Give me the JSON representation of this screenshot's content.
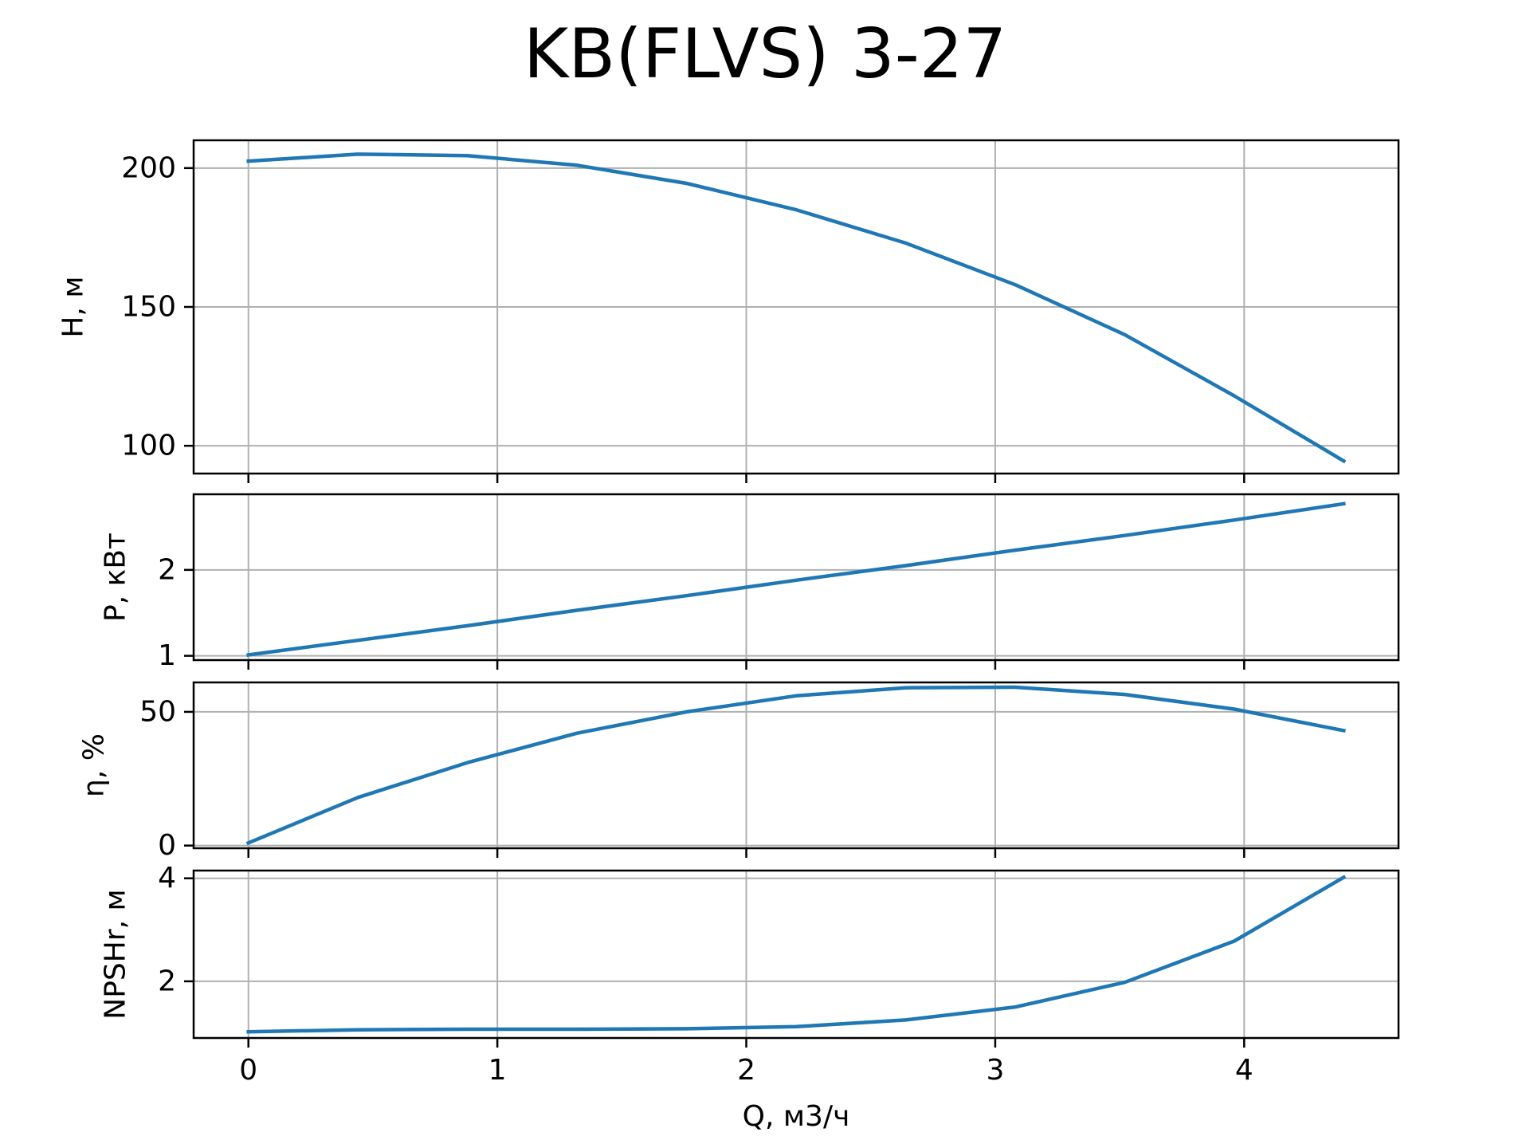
{
  "chart_data": {
    "type": "line",
    "title": "KB(FLVS) 3-27",
    "xlabel": "Q, м3/ч",
    "x_ticks": [
      "0",
      "1",
      "2",
      "3",
      "4"
    ],
    "xlim": [
      -0.22,
      4.62
    ],
    "grid": true,
    "series_color": "#1f77b4",
    "panels": [
      {
        "ylabel": "H, м",
        "ylim": [
          90,
          210
        ],
        "y_ticks": [
          100,
          150,
          200
        ],
        "x": [
          0,
          0.44,
          0.88,
          1.32,
          1.76,
          2.2,
          2.64,
          3.08,
          3.52,
          3.96,
          4.4
        ],
        "y": [
          202.5,
          205,
          204.5,
          201,
          194.5,
          185,
          173,
          158,
          140,
          118,
          94.5
        ]
      },
      {
        "ylabel": "P, кВт",
        "ylim": [
          0.95,
          2.88
        ],
        "y_ticks": [
          1,
          2
        ],
        "x": [
          0,
          0.44,
          0.88,
          1.32,
          1.76,
          2.2,
          2.64,
          3.08,
          3.52,
          3.96,
          4.4
        ],
        "y": [
          1.01,
          1.18,
          1.35,
          1.53,
          1.7,
          1.88,
          2.05,
          2.23,
          2.4,
          2.58,
          2.77
        ]
      },
      {
        "ylabel": "η, %",
        "ylim": [
          -1,
          61
        ],
        "y_ticks": [
          0,
          50
        ],
        "x": [
          0,
          0.44,
          0.88,
          1.32,
          1.76,
          2.2,
          2.64,
          3.08,
          3.52,
          3.96,
          4.4
        ],
        "y": [
          1,
          18,
          31,
          42,
          50,
          56,
          59,
          59.2,
          56.5,
          51,
          43
        ]
      },
      {
        "ylabel": "NPSHr, м",
        "ylim": [
          0.9,
          4.15
        ],
        "y_ticks": [
          2,
          4
        ],
        "x": [
          0,
          0.44,
          0.88,
          1.32,
          1.76,
          2.2,
          2.64,
          3.08,
          3.52,
          3.96,
          4.4
        ],
        "y": [
          1.02,
          1.06,
          1.07,
          1.07,
          1.08,
          1.12,
          1.25,
          1.5,
          1.98,
          2.78,
          4.02
        ]
      }
    ]
  }
}
